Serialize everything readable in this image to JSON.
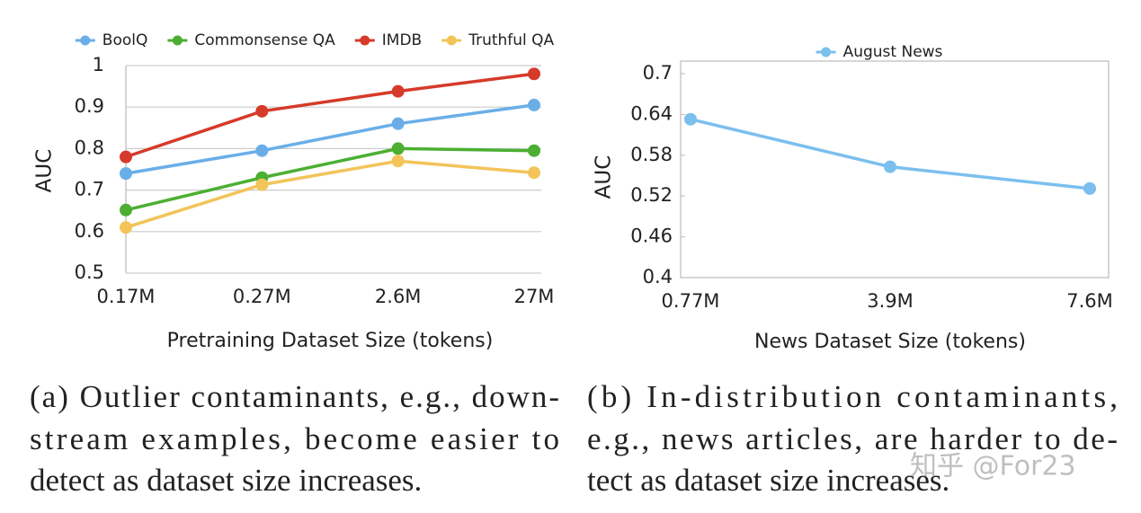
{
  "chart_data": [
    {
      "type": "line",
      "categories": [
        "0.17M",
        "0.27M",
        "2.6M",
        "27M"
      ],
      "series": [
        {
          "name": "BoolQ",
          "color": "#6aaee8",
          "values": [
            0.74,
            0.795,
            0.86,
            0.905
          ]
        },
        {
          "name": "Commonsense QA",
          "color": "#4caf32",
          "values": [
            0.652,
            0.73,
            0.8,
            0.795
          ]
        },
        {
          "name": "IMDB",
          "color": "#d63a2a",
          "values": [
            0.78,
            0.89,
            0.938,
            0.98
          ]
        },
        {
          "name": "Truthful QA",
          "color": "#f2c45a",
          "values": [
            0.61,
            0.713,
            0.77,
            0.742
          ]
        }
      ],
      "ylim": [
        0.5,
        1
      ],
      "yticks": [
        0.5,
        0.6,
        0.7,
        0.8,
        0.9,
        1
      ],
      "grid": true,
      "frame": false,
      "ylabel": "AUC",
      "xlabel": "Pretraining Dataset Size (tokens)",
      "caption": [
        "(a) Outlier contaminants, e.g., down-",
        "stream examples, become easier to",
        "detect as dataset size increases."
      ]
    },
    {
      "type": "line",
      "categories": [
        "0.77M",
        "3.9M",
        "7.6M"
      ],
      "series": [
        {
          "name": "August News",
          "color": "#7bbfee",
          "values": [
            0.633,
            0.563,
            0.531
          ]
        }
      ],
      "ylim": [
        0.4,
        0.7
      ],
      "yticks": [
        0.4,
        0.46,
        0.52,
        0.58,
        0.64,
        0.7
      ],
      "grid": false,
      "frame": true,
      "ylabel": "AUC",
      "xlabel": "News Dataset Size (tokens)",
      "caption": [
        "(b) In-distribution contaminants,",
        "e.g., news articles, are harder to de-",
        "tect as dataset size increases."
      ]
    }
  ],
  "watermark": "知乎 @For23"
}
